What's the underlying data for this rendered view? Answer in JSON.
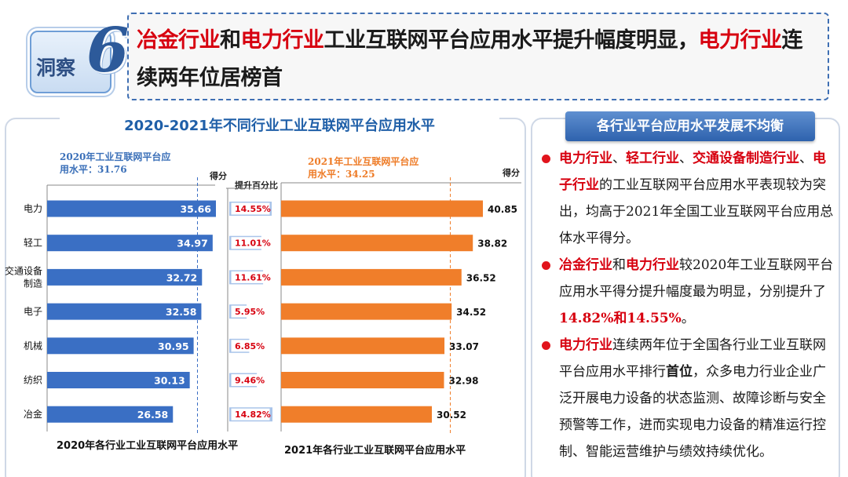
{
  "header": {
    "badge_text": "洞察",
    "badge_number": "6",
    "headline_parts": [
      {
        "text": "冶金行业",
        "red": true
      },
      {
        "text": "和",
        "red": false
      },
      {
        "text": "电力行业",
        "red": true
      },
      {
        "text": "工业互联网平台应用水平提升幅度明显，",
        "red": false
      },
      {
        "text": "电力行业",
        "red": true
      },
      {
        "text": "连续两年位居榜首",
        "red": false
      }
    ]
  },
  "chart_title": "2020-2021年不同行业工业互联网平台应用水平",
  "labels": {
    "avg2020_line1": "2020年工业互联网平台应",
    "avg2020_line2": "用水平：31.76",
    "avg2021_line1": "2021年工业互联网平台应",
    "avg2021_line2": "用水平：34.25",
    "score_cap_left": "得分",
    "pct_cap": "提升百分比",
    "score_cap_right": "得分",
    "bottom_left": "2020年各行业工业互联网平台应用水平",
    "bottom_right": "2021年各行业工业互联网平台应用水平"
  },
  "chart_data": {
    "type": "bar",
    "orientation": "horizontal",
    "categories": [
      "电力",
      "轻工",
      "交通设备制造",
      "电子",
      "机械",
      "纺织",
      "冶金"
    ],
    "category_display": [
      [
        "电力"
      ],
      [
        "轻工"
      ],
      [
        "交通设备",
        "制造"
      ],
      [
        "电子"
      ],
      [
        "机械"
      ],
      [
        "纺织"
      ],
      [
        "冶金"
      ]
    ],
    "series": [
      {
        "name": "2020年各行业工业互联网平台应用水平",
        "values": [
          35.66,
          34.97,
          32.72,
          32.58,
          30.95,
          30.13,
          26.58
        ],
        "color": "#3a6fc4",
        "average": 31.76
      },
      {
        "name": "提升百分比",
        "values": [
          14.55,
          11.01,
          11.61,
          5.95,
          6.85,
          9.46,
          14.82
        ],
        "labels": [
          "14.55%",
          "11.01%",
          "11.61%",
          "5.95%",
          "6.85%",
          "9.46%",
          "14.82%"
        ],
        "color": "#a9c4ea"
      },
      {
        "name": "2021年各行业工业互联网平台应用水平",
        "values": [
          40.85,
          38.82,
          36.52,
          34.52,
          33.07,
          32.98,
          30.52
        ],
        "color": "#f07e2a",
        "average": 34.25
      }
    ],
    "title": "2020-2021年不同行业工业互联网平台应用水平",
    "xlim": [
      0,
      42
    ]
  },
  "right_panel": {
    "tab_title": "各行业平台应用水平发展不均衡",
    "bullets": [
      [
        {
          "t": "电力行业",
          "s": "red"
        },
        {
          "t": "、",
          "s": ""
        },
        {
          "t": "轻工行业",
          "s": "red"
        },
        {
          "t": "、",
          "s": ""
        },
        {
          "t": "交通设备制造行业",
          "s": "red"
        },
        {
          "t": "、",
          "s": ""
        },
        {
          "t": "电子行业",
          "s": "red"
        },
        {
          "t": "的工业互联网平台应用水平表现较为突出，均高于",
          "s": ""
        },
        {
          "t": "2021",
          "s": "serif"
        },
        {
          "t": "年全国工业互联网平台应用总体水平得分。",
          "s": ""
        }
      ],
      [
        {
          "t": "冶金行业",
          "s": "red"
        },
        {
          "t": "和",
          "s": ""
        },
        {
          "t": "电力行业",
          "s": "red"
        },
        {
          "t": "较",
          "s": ""
        },
        {
          "t": "2020",
          "s": "serif"
        },
        {
          "t": "年工业互联网平台应用水平得分提升幅度最为明显，分别提升了",
          "s": ""
        },
        {
          "t": "14.82%",
          "s": "num"
        },
        {
          "t": "和",
          "s": "red"
        },
        {
          "t": "14.55%",
          "s": "num"
        },
        {
          "t": "。",
          "s": ""
        }
      ],
      [
        {
          "t": "电力行业",
          "s": "red"
        },
        {
          "t": "连续两年位于全国各行业工业互联网平台应用水平排行",
          "s": ""
        },
        {
          "t": "首位",
          "s": "bold"
        },
        {
          "t": "，众多电力行业企业广泛开展电力设备的状态监测、故障诊断与安全预警等工作，进而实现电力设备的精准运行控制、智能运营维护与绩效持续优化。",
          "s": ""
        }
      ]
    ]
  },
  "colors": {
    "accent_blue": "#1f5fa8",
    "bar2020": "#3a6fc4",
    "bar2021": "#f07e2a",
    "emphasis_red": "#d7000f"
  }
}
